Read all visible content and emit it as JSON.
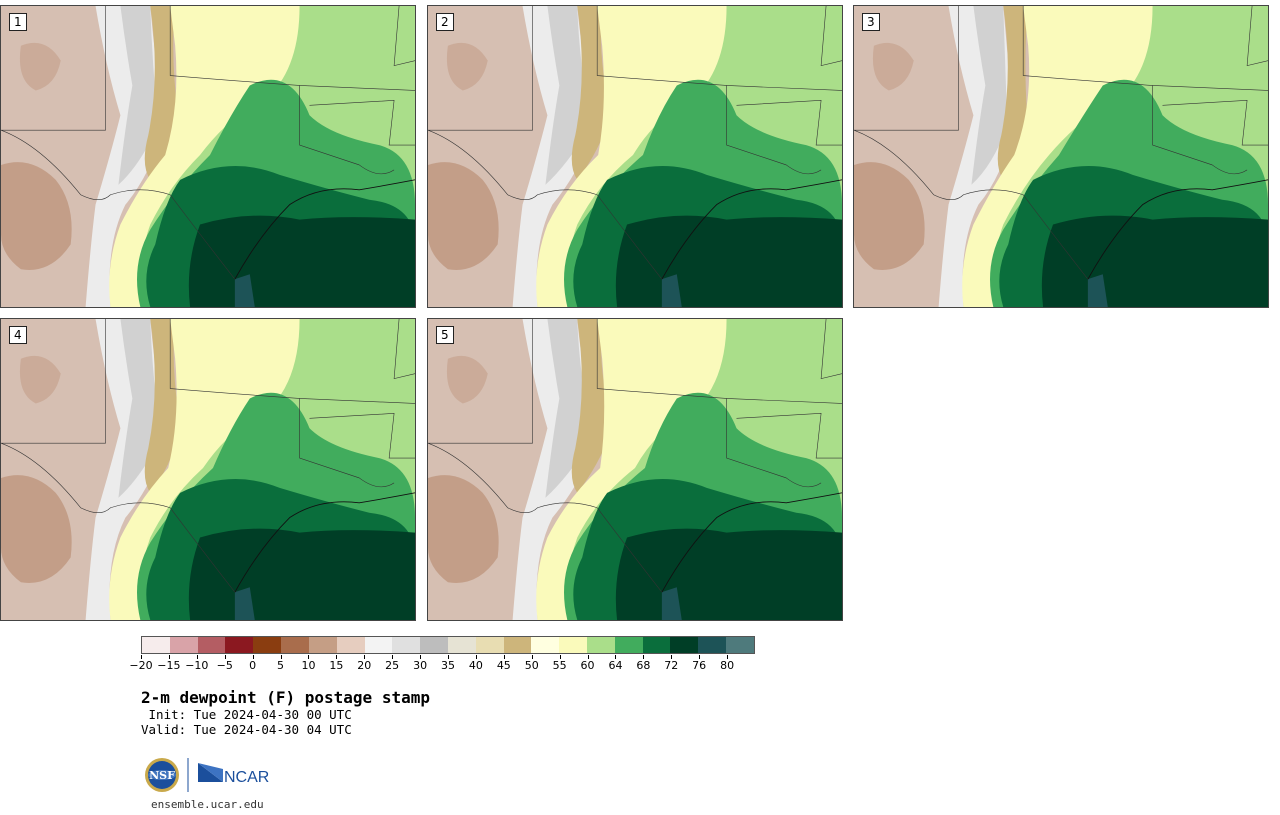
{
  "members": [
    {
      "label": "1"
    },
    {
      "label": "2"
    },
    {
      "label": "3"
    },
    {
      "label": "4"
    },
    {
      "label": "5"
    }
  ],
  "title": "2-m dewpoint (F) postage stamp",
  "init": " Init: Tue 2024-04-30 00 UTC",
  "valid": "Valid: Tue 2024-04-30 04 UTC",
  "footer": {
    "website": "ensemble.ucar.edu",
    "logo_nsf": "NSF",
    "logo_ncar": "NCAR"
  },
  "colorbar": {
    "unit": "F",
    "tick_labels": [
      "−20",
      "−15",
      "−10",
      "−5",
      "0",
      "5",
      "10",
      "15",
      "20",
      "25",
      "30",
      "35",
      "40",
      "45",
      "50",
      "55",
      "60",
      "64",
      "68",
      "72",
      "76",
      "80"
    ],
    "colors": [
      "#f6ecec",
      "#d9a3a8",
      "#b45d63",
      "#8b1820",
      "#8a3d10",
      "#a96d4c",
      "#c59e85",
      "#e6cdbf",
      "#f3f3f3",
      "#e0e0e0",
      "#bdbdbd",
      "#e6e3d4",
      "#e8ddb2",
      "#cdb57b",
      "#ffffe0",
      "#fafabb",
      "#aade8a",
      "#41ac5d",
      "#0a6e3c",
      "#003e26",
      "#1d5357",
      "#4e7a7c"
    ]
  },
  "map_colors": {
    "dry": "#d6bfb2",
    "dry_dark": "#c39e88",
    "rocky": "#ececec",
    "gray": "#c6c6c6",
    "tan": "#cdb57b",
    "pale": "#fafabb",
    "light_green": "#aade8a",
    "green": "#41ac5d",
    "dark_green": "#0a6e3c",
    "darkest_green": "#003e26",
    "teal": "#1d5357"
  }
}
